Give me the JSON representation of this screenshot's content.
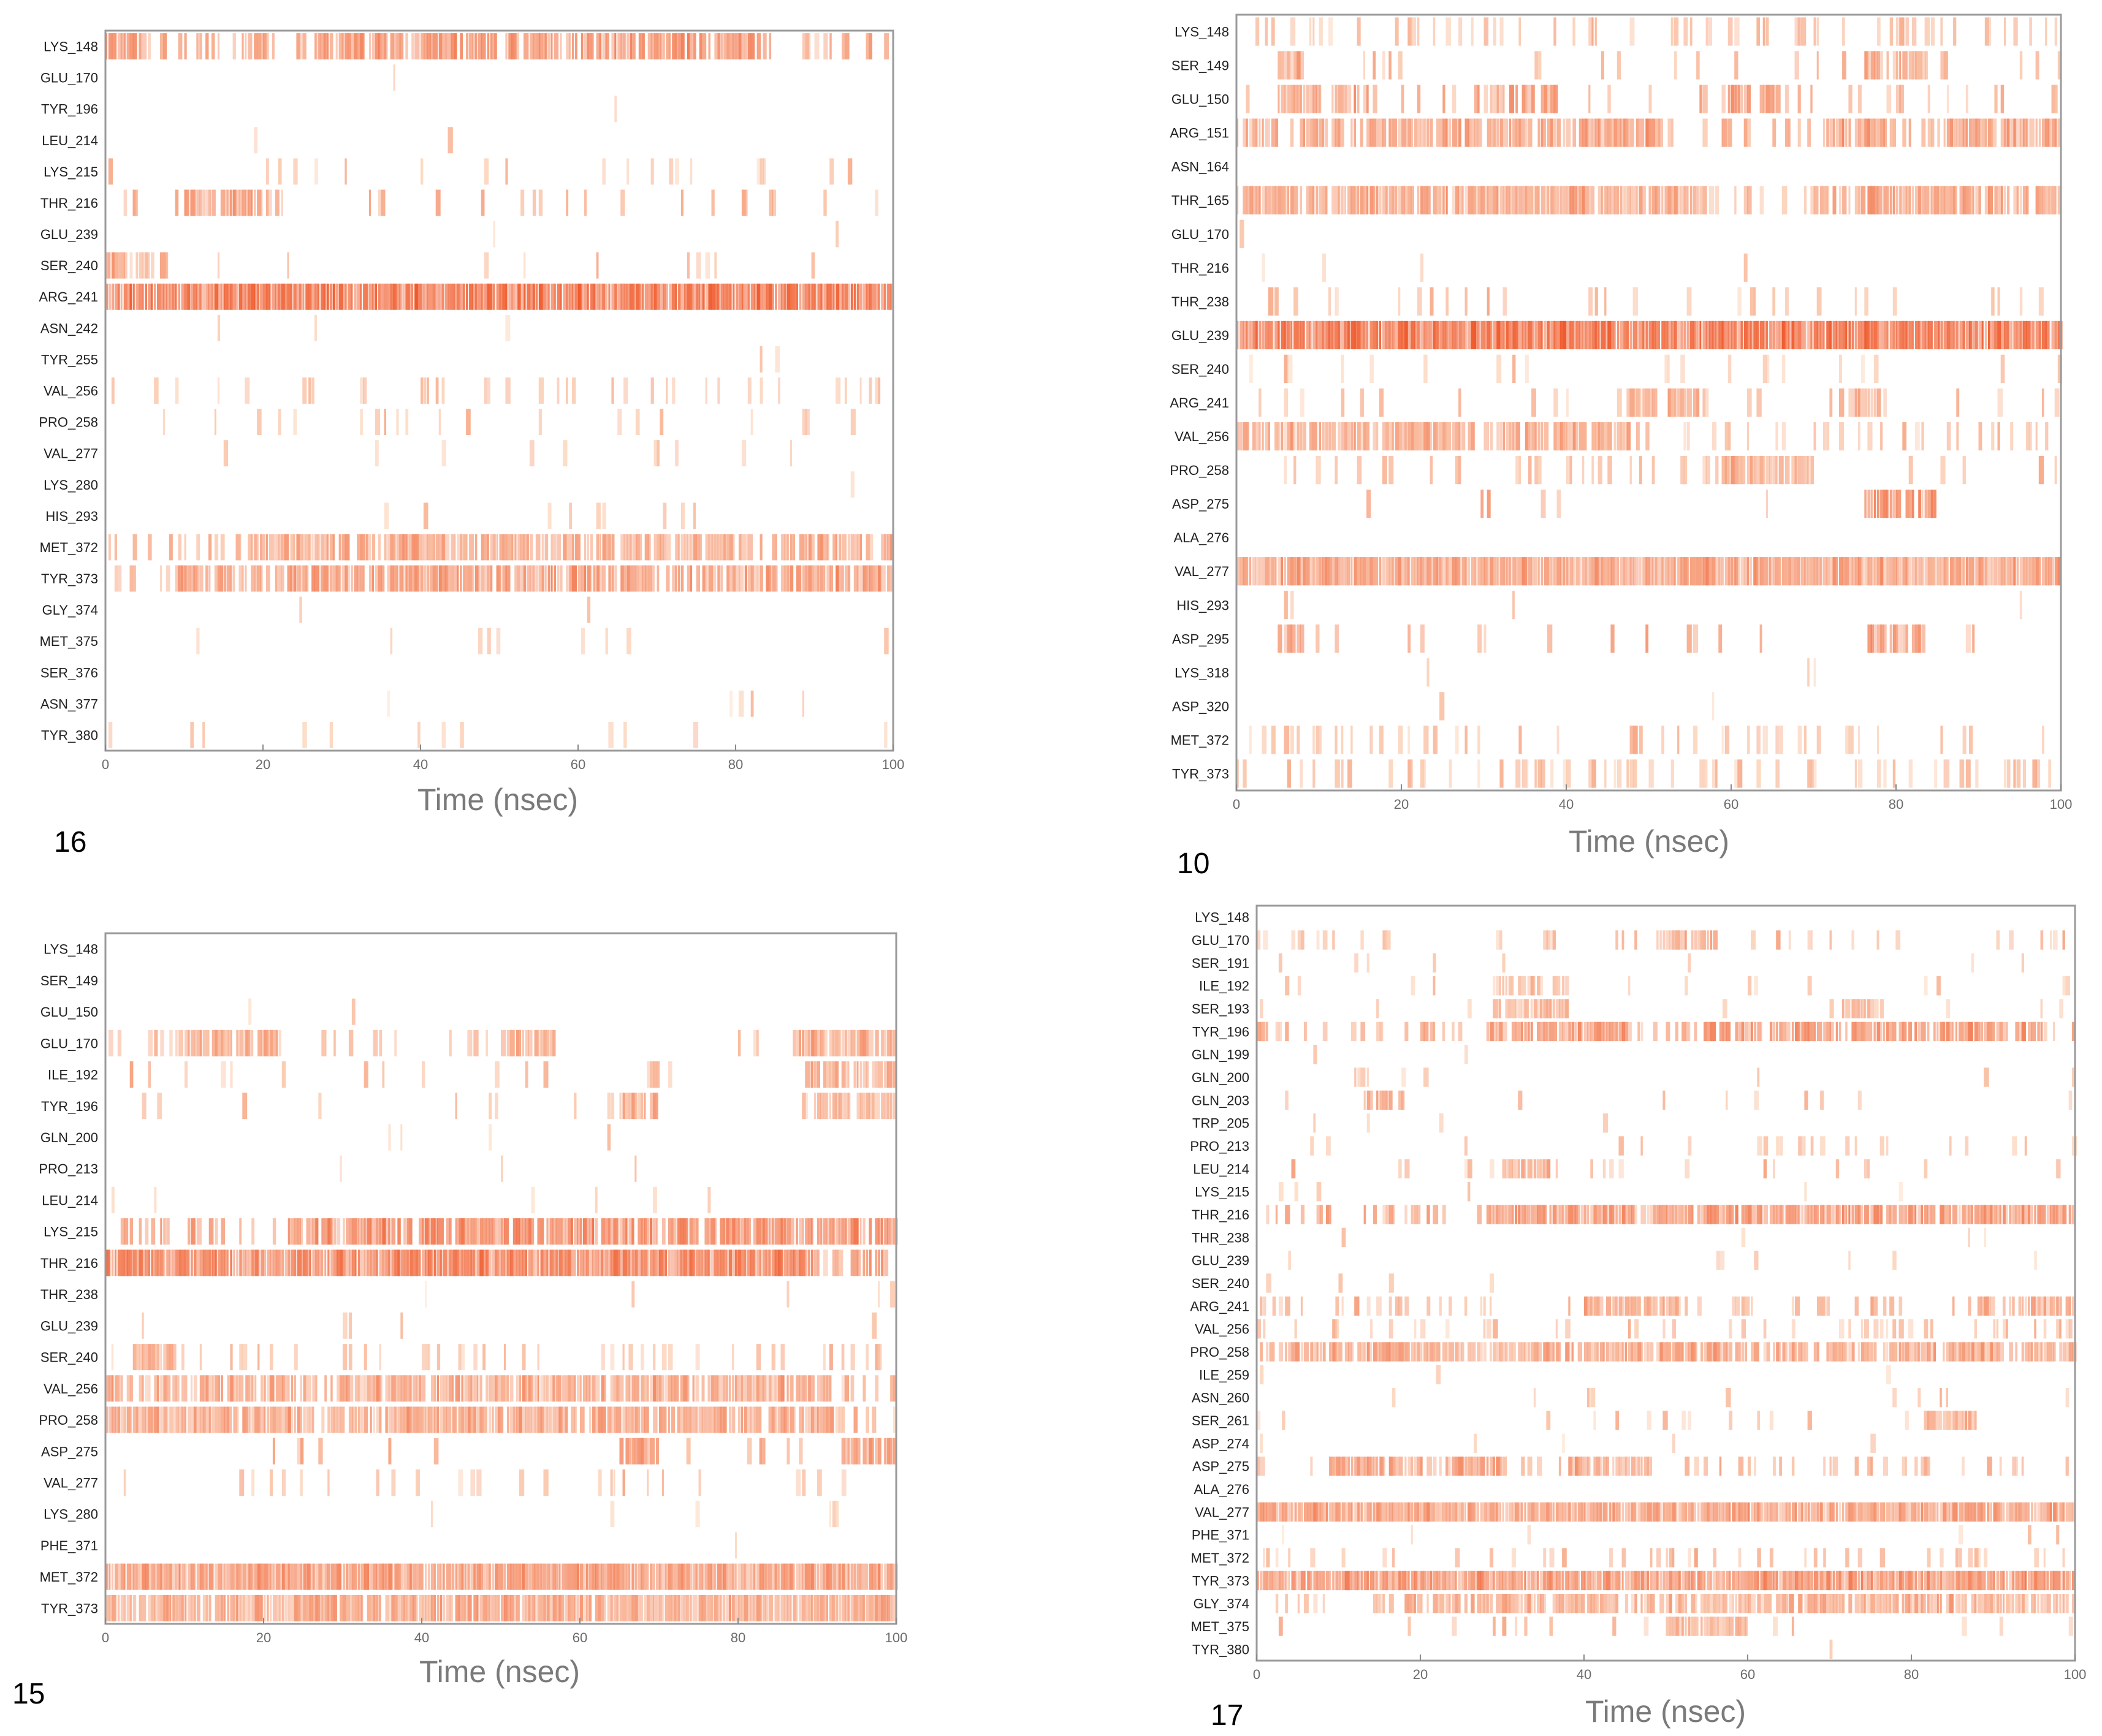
{
  "figure": {
    "background": "#ffffff",
    "frame_color": "#9a9a9a",
    "bar_color_low": "#fde3cc",
    "bar_color_high": "#ef5a2c"
  },
  "chart_data": [
    {
      "id": "16",
      "panel_label": "16",
      "type": "heatmap",
      "title": "",
      "xlabel": "Time (nsec)",
      "xlim": [
        0,
        100
      ],
      "xticks": [
        "0",
        "20",
        "40",
        "60",
        "80",
        "100"
      ],
      "residues": [
        "LYS_148",
        "GLU_170",
        "TYR_196",
        "LEU_214",
        "LYS_215",
        "THR_216",
        "GLU_239",
        "SER_240",
        "ARG_241",
        "ASN_242",
        "TYR_255",
        "VAL_256",
        "PRO_258",
        "VAL_277",
        "LYS_280",
        "HIS_293",
        "MET_372",
        "TYR_373",
        "GLY_374",
        "MET_375",
        "SER_376",
        "ASN_377",
        "TYR_380"
      ],
      "occupancy": [
        0.4,
        0.01,
        0.01,
        0.01,
        0.12,
        0.22,
        0.03,
        0.12,
        0.97,
        0.01,
        0.02,
        0.18,
        0.16,
        0.12,
        0.01,
        0.07,
        0.34,
        0.5,
        0.02,
        0.08,
        0.01,
        0.02,
        0.06
      ],
      "intensity": [
        0.6,
        0.25,
        0.25,
        0.25,
        0.35,
        0.5,
        0.25,
        0.4,
        0.85,
        0.2,
        0.2,
        0.35,
        0.3,
        0.3,
        0.2,
        0.3,
        0.45,
        0.55,
        0.2,
        0.3,
        0.3,
        0.2,
        0.3
      ],
      "dense_ranges": [
        [
          [
            0,
            4
          ],
          [
            27,
            83
          ]
        ],
        [],
        [],
        [],
        [],
        [
          [
            10,
            21
          ]
        ],
        [],
        [
          [
            0,
            8
          ]
        ],
        [
          [
            0,
            100
          ]
        ],
        [],
        [],
        [],
        [],
        [],
        [],
        [],
        [
          [
            18,
            100
          ]
        ],
        [
          [
            9,
            100
          ]
        ],
        [],
        [],
        [],
        [],
        []
      ]
    },
    {
      "id": "10",
      "panel_label": "10",
      "type": "heatmap",
      "title": "",
      "xlabel": "Time (nsec)",
      "xlim": [
        0,
        100
      ],
      "xticks": [
        "0",
        "20",
        "40",
        "60",
        "80",
        "100"
      ],
      "residues": [
        "LYS_148",
        "SER_149",
        "GLU_150",
        "ARG_151",
        "ASN_164",
        "THR_165",
        "GLU_170",
        "THR_216",
        "THR_238",
        "GLU_239",
        "SER_240",
        "ARG_241",
        "VAL_256",
        "PRO_258",
        "ASP_275",
        "ALA_276",
        "VAL_277",
        "HIS_293",
        "ASP_295",
        "LYS_318",
        "ASP_320",
        "MET_372",
        "TYR_373"
      ],
      "occupancy": [
        0.4,
        0.16,
        0.3,
        0.55,
        0.01,
        0.6,
        0.02,
        0.03,
        0.18,
        0.97,
        0.15,
        0.15,
        0.5,
        0.25,
        0.06,
        0.01,
        0.85,
        0.03,
        0.1,
        0.01,
        0.02,
        0.35,
        0.4
      ],
      "intensity": [
        0.4,
        0.45,
        0.5,
        0.5,
        0.2,
        0.45,
        0.25,
        0.3,
        0.35,
        0.85,
        0.3,
        0.4,
        0.4,
        0.4,
        0.6,
        0.2,
        0.5,
        0.25,
        0.55,
        0.2,
        0.2,
        0.35,
        0.35
      ],
      "dense_ranges": [
        [],
        [
          [
            5,
            8
          ],
          [
            76,
            84
          ]
        ],
        [
          [
            5,
            16
          ],
          [
            29,
            39
          ],
          [
            59,
            66
          ]
        ],
        [
          [
            0,
            5
          ],
          [
            8,
            52
          ],
          [
            71,
            79
          ],
          [
            86,
            100
          ]
        ],
        [],
        [
          [
            0,
            57
          ],
          [
            70,
            100
          ]
        ],
        [],
        [],
        [],
        [
          [
            0,
            100
          ]
        ],
        [],
        [
          [
            47,
            57
          ],
          [
            73,
            78
          ]
        ],
        [
          [
            0,
            29
          ],
          [
            31,
            49
          ]
        ],
        [
          [
            58,
            70
          ]
        ],
        [
          [
            76,
            85
          ]
        ],
        [],
        [
          [
            0,
            100
          ]
        ],
        [],
        [
          [
            5,
            8
          ],
          [
            76,
            84
          ]
        ],
        [],
        [],
        [],
        []
      ]
    },
    {
      "id": "15",
      "panel_label": "15",
      "type": "heatmap",
      "title": "",
      "xlabel": "Time (nsec)",
      "xlim": [
        0,
        100
      ],
      "xticks": [
        "0",
        "20",
        "40",
        "60",
        "80",
        "100"
      ],
      "residues": [
        "LYS_148",
        "SER_149",
        "GLU_150",
        "GLU_170",
        "ILE_192",
        "TYR_196",
        "GLN_200",
        "PRO_213",
        "LEU_214",
        "LYS_215",
        "THR_216",
        "THR_238",
        "GLU_239",
        "SER_240",
        "VAL_256",
        "PRO_258",
        "ASP_275",
        "VAL_277",
        "LYS_280",
        "PHE_371",
        "MET_372",
        "TYR_373"
      ],
      "occupancy": [
        0.01,
        0.01,
        0.02,
        0.18,
        0.06,
        0.12,
        0.02,
        0.02,
        0.02,
        0.5,
        0.9,
        0.03,
        0.1,
        0.25,
        0.55,
        0.62,
        0.09,
        0.2,
        0.02,
        0.01,
        0.75,
        0.65
      ],
      "intensity": [
        0.2,
        0.2,
        0.2,
        0.4,
        0.4,
        0.4,
        0.2,
        0.25,
        0.2,
        0.65,
        0.7,
        0.25,
        0.3,
        0.4,
        0.45,
        0.45,
        0.55,
        0.35,
        0.2,
        0.2,
        0.55,
        0.45
      ],
      "dense_ranges": [
        [],
        [],
        [],
        [
          [
            10,
            22
          ],
          [
            50,
            57
          ],
          [
            87,
            100
          ]
        ],
        [
          [
            68,
            70
          ],
          [
            88,
            100
          ]
        ],
        [
          [
            65,
            70
          ],
          [
            88,
            100
          ]
        ],
        [],
        [],
        [],
        [
          [
            24,
            100
          ]
        ],
        [
          [
            0,
            90
          ]
        ],
        [],
        [],
        [
          [
            3,
            9
          ]
        ],
        [
          [
            0,
            92
          ]
        ],
        [
          [
            0,
            92
          ]
        ],
        [
          [
            65,
            70
          ],
          [
            93,
            100
          ]
        ],
        [],
        [],
        [],
        [
          [
            0,
            93
          ],
          [
            93,
            100
          ]
        ],
        [
          [
            0,
            100
          ]
        ]
      ]
    },
    {
      "id": "17",
      "panel_label": "17",
      "type": "heatmap",
      "title": "",
      "xlabel": "Time (nsec)",
      "xlim": [
        0,
        100
      ],
      "xticks": [
        "0",
        "20",
        "40",
        "60",
        "80",
        "100"
      ],
      "residues": [
        "LYS_148",
        "GLU_170",
        "SER_191",
        "ILE_192",
        "SER_193",
        "TYR_196",
        "GLN_199",
        "GLN_200",
        "GLN_203",
        "TRP_205",
        "PRO_213",
        "LEU_214",
        "LYS_215",
        "THR_216",
        "THR_238",
        "GLU_239",
        "SER_240",
        "ARG_241",
        "VAL_256",
        "PRO_258",
        "ILE_259",
        "ASN_260",
        "SER_261",
        "ASP_274",
        "ASP_275",
        "ALA_276",
        "VAL_277",
        "PHE_371",
        "MET_372",
        "TYR_373",
        "GLY_374",
        "MET_375",
        "TYR_380"
      ],
      "occupancy": [
        0.01,
        0.3,
        0.08,
        0.1,
        0.15,
        0.55,
        0.03,
        0.05,
        0.06,
        0.03,
        0.18,
        0.15,
        0.03,
        0.65,
        0.02,
        0.04,
        0.02,
        0.35,
        0.4,
        0.5,
        0.02,
        0.08,
        0.12,
        0.02,
        0.4,
        0.02,
        0.7,
        0.02,
        0.35,
        0.72,
        0.4,
        0.15,
        0.02
      ],
      "intensity": [
        0.2,
        0.4,
        0.3,
        0.3,
        0.35,
        0.55,
        0.25,
        0.3,
        0.45,
        0.25,
        0.3,
        0.4,
        0.2,
        0.55,
        0.2,
        0.3,
        0.2,
        0.4,
        0.4,
        0.45,
        0.2,
        0.3,
        0.35,
        0.2,
        0.5,
        0.2,
        0.5,
        0.2,
        0.4,
        0.6,
        0.4,
        0.35,
        0.2
      ],
      "dense_ranges": [
        [],
        [
          [
            49,
            56
          ]
        ],
        [],
        [
          [
            29,
            38
          ]
        ],
        [
          [
            29,
            38
          ],
          [
            71,
            76
          ]
        ],
        [
          [
            28,
            46
          ],
          [
            52,
            96
          ]
        ],
        [],
        [
          [
            12,
            14
          ]
        ],
        [
          [
            13,
            18
          ]
        ],
        [],
        [],
        [
          [
            30,
            37
          ]
        ],
        [],
        [
          [
            28,
            46
          ],
          [
            49,
            100
          ]
        ],
        [],
        [],
        [],
        [
          [
            40,
            52
          ],
          [
            88,
            100
          ]
        ],
        [],
        [
          [
            0,
            100
          ]
        ],
        [],
        [],
        [
          [
            82,
            88
          ]
        ],
        [],
        [
          [
            9,
            30
          ],
          [
            37,
            48
          ]
        ],
        [],
        [
          [
            0,
            100
          ]
        ],
        [],
        [],
        [
          [
            0,
            100
          ]
        ],
        [
          [
            18,
            100
          ]
        ],
        [
          [
            50,
            60
          ]
        ],
        []
      ]
    }
  ]
}
